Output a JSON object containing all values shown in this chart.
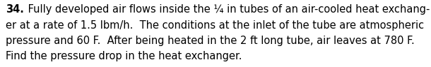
{
  "number": "34.",
  "line1_rest": " Fully developed air flows inside the ¼ in tubes of an air-cooled heat exchang-",
  "line2": "er at a rate of 1.5 lbm/h.  The conditions at the inlet of the tube are atmospheric",
  "line3": "pressure and 60 F.  After being heated in the 2 ft long tube, air leaves at 780 F.",
  "line4": "Find the pressure drop in the heat exchanger.",
  "background_color": "#ffffff",
  "text_color": "#000000",
  "fontsize": 10.5,
  "font_family": "DejaVu Sans"
}
